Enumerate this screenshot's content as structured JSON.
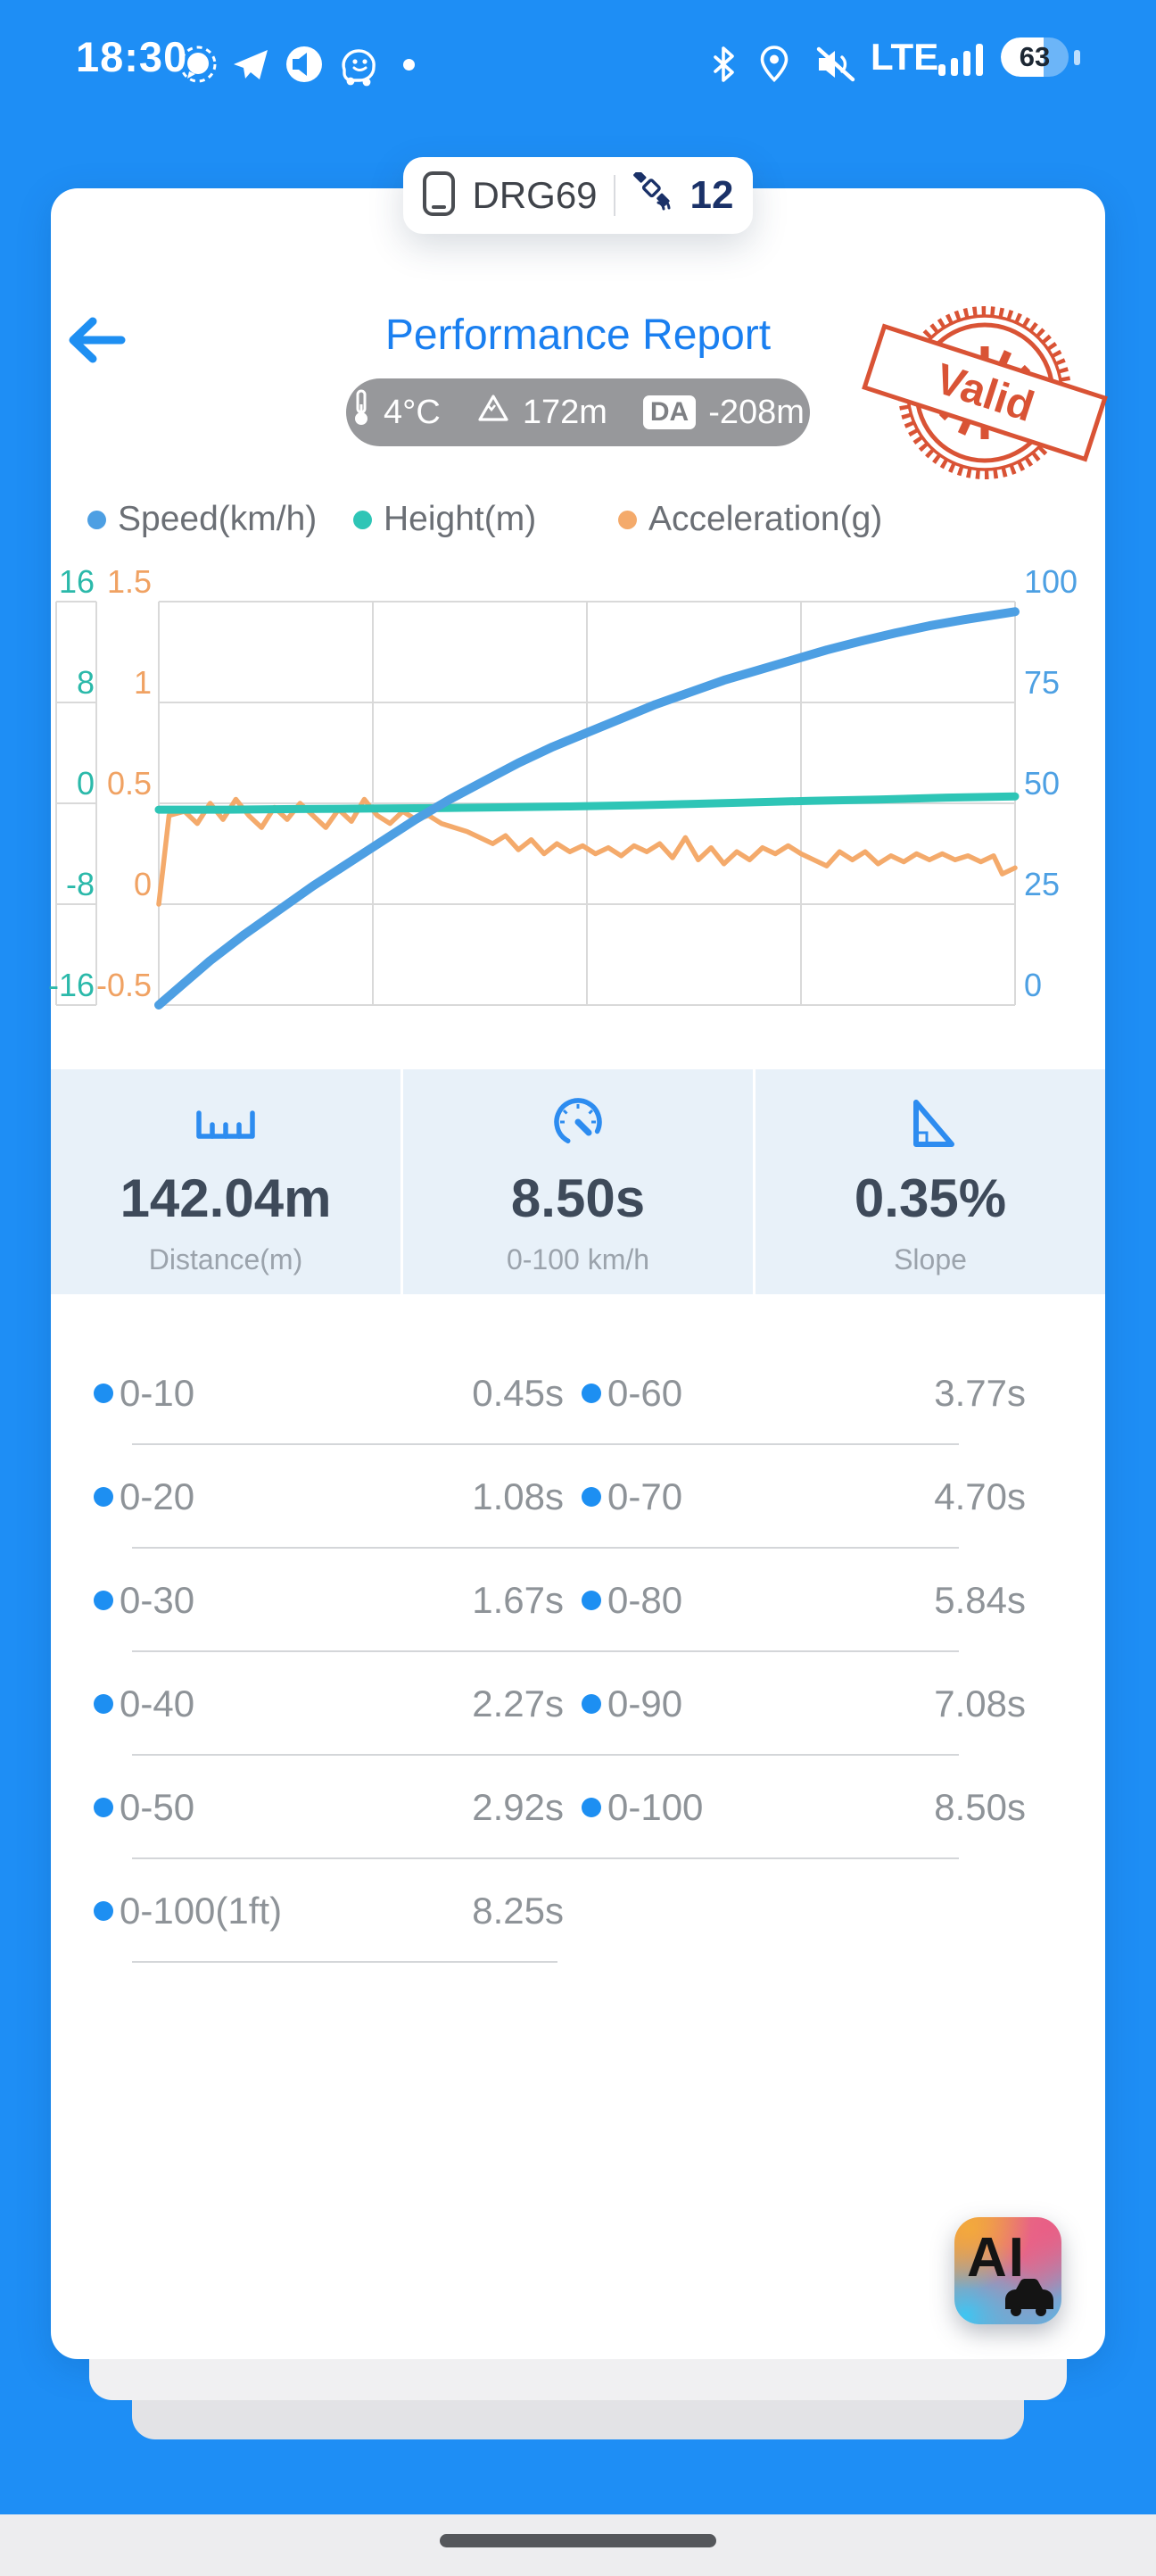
{
  "colors": {
    "accent_blue": "#1d8ff2",
    "page_background": "#1e8ef5",
    "stamp_red": "#d84a2b",
    "speed_blue": "#4d9fe3",
    "height_teal": "#2ec5b6",
    "accel_orange": "#f4aa6b",
    "navy": "#1a3168"
  },
  "status_bar": {
    "time": "18:30",
    "carrier": "LTE",
    "battery_percent": "63"
  },
  "top_pill": {
    "device_name": "DRG69",
    "satellite_count": "12"
  },
  "header": {
    "title": "Performance Report",
    "stamp_text": "Valid",
    "conditions": {
      "temperature": "4°C",
      "elevation": "172m",
      "da_label": "DA",
      "da_value": "-208m"
    }
  },
  "chart_data": {
    "type": "line",
    "title": "",
    "grid": true,
    "legend_position": "top",
    "axes": {
      "height": {
        "label": "Height(m)",
        "ticks": [
          "16",
          "8",
          "0",
          "-8",
          "-16"
        ],
        "range": [
          -16,
          16
        ],
        "color": "#2bb9aa",
        "side": "outer-left"
      },
      "accel": {
        "label": "Acceleration(g)",
        "ticks": [
          "1.5",
          "1",
          "0.5",
          "0",
          "-0.5"
        ],
        "range": [
          -0.5,
          1.5
        ],
        "color": "#f0a263",
        "side": "inner-left"
      },
      "speed": {
        "label": "Speed(km/h)",
        "ticks": [
          "100",
          "75",
          "50",
          "25",
          "0"
        ],
        "range": [
          0,
          100
        ],
        "color": "#4da0e3",
        "side": "right"
      }
    },
    "series": [
      {
        "name": "Speed(km/h)",
        "axis": "speed",
        "color": "#4d9fe3",
        "width": 10,
        "points": [
          [
            0,
            0
          ],
          [
            0.03,
            5.5
          ],
          [
            0.06,
            11
          ],
          [
            0.1,
            17.5
          ],
          [
            0.14,
            23.5
          ],
          [
            0.18,
            29.5
          ],
          [
            0.22,
            35
          ],
          [
            0.26,
            40.5
          ],
          [
            0.3,
            46
          ],
          [
            0.34,
            51
          ],
          [
            0.38,
            55.5
          ],
          [
            0.42,
            60
          ],
          [
            0.46,
            64
          ],
          [
            0.5,
            67.5
          ],
          [
            0.54,
            71
          ],
          [
            0.58,
            74.5
          ],
          [
            0.62,
            77.5
          ],
          [
            0.66,
            80.5
          ],
          [
            0.7,
            83
          ],
          [
            0.74,
            85.5
          ],
          [
            0.78,
            88
          ],
          [
            0.82,
            90.2
          ],
          [
            0.86,
            92.2
          ],
          [
            0.9,
            94
          ],
          [
            0.94,
            95.5
          ],
          [
            0.97,
            96.5
          ],
          [
            1,
            97.5
          ]
        ]
      },
      {
        "name": "Height(m)",
        "axis": "height",
        "color": "#2ec5b6",
        "width": 9,
        "points": [
          [
            0,
            -0.5
          ],
          [
            0.08,
            -0.5
          ],
          [
            0.16,
            -0.45
          ],
          [
            0.24,
            -0.42
          ],
          [
            0.32,
            -0.38
          ],
          [
            0.4,
            -0.32
          ],
          [
            0.48,
            -0.25
          ],
          [
            0.56,
            -0.15
          ],
          [
            0.62,
            -0.05
          ],
          [
            0.68,
            0.05
          ],
          [
            0.76,
            0.2
          ],
          [
            0.84,
            0.3
          ],
          [
            0.92,
            0.45
          ],
          [
            1,
            0.55
          ]
        ]
      },
      {
        "name": "Acceleration(g)",
        "axis": "accel",
        "color": "#f4aa6b",
        "width": 5.5,
        "points": [
          [
            0,
            0
          ],
          [
            0.005,
            0.18
          ],
          [
            0.012,
            0.44
          ],
          [
            0.03,
            0.46
          ],
          [
            0.045,
            0.4
          ],
          [
            0.06,
            0.5
          ],
          [
            0.075,
            0.42
          ],
          [
            0.09,
            0.52
          ],
          [
            0.105,
            0.44
          ],
          [
            0.12,
            0.38
          ],
          [
            0.135,
            0.48
          ],
          [
            0.15,
            0.42
          ],
          [
            0.165,
            0.5
          ],
          [
            0.18,
            0.44
          ],
          [
            0.195,
            0.38
          ],
          [
            0.21,
            0.47
          ],
          [
            0.225,
            0.41
          ],
          [
            0.24,
            0.52
          ],
          [
            0.255,
            0.44
          ],
          [
            0.27,
            0.4
          ],
          [
            0.285,
            0.46
          ],
          [
            0.3,
            0.42
          ],
          [
            0.315,
            0.44
          ],
          [
            0.33,
            0.4
          ],
          [
            0.345,
            0.38
          ],
          [
            0.36,
            0.36
          ],
          [
            0.375,
            0.33
          ],
          [
            0.39,
            0.3
          ],
          [
            0.405,
            0.34
          ],
          [
            0.42,
            0.27
          ],
          [
            0.435,
            0.32
          ],
          [
            0.45,
            0.25
          ],
          [
            0.465,
            0.3
          ],
          [
            0.48,
            0.26
          ],
          [
            0.495,
            0.29
          ],
          [
            0.51,
            0.25
          ],
          [
            0.525,
            0.28
          ],
          [
            0.54,
            0.24
          ],
          [
            0.555,
            0.29
          ],
          [
            0.57,
            0.26
          ],
          [
            0.585,
            0.3
          ],
          [
            0.6,
            0.23
          ],
          [
            0.615,
            0.33
          ],
          [
            0.63,
            0.22
          ],
          [
            0.645,
            0.28
          ],
          [
            0.66,
            0.2
          ],
          [
            0.675,
            0.26
          ],
          [
            0.69,
            0.22
          ],
          [
            0.705,
            0.28
          ],
          [
            0.72,
            0.25
          ],
          [
            0.735,
            0.29
          ],
          [
            0.75,
            0.25
          ],
          [
            0.765,
            0.22
          ],
          [
            0.78,
            0.19
          ],
          [
            0.795,
            0.26
          ],
          [
            0.81,
            0.22
          ],
          [
            0.825,
            0.26
          ],
          [
            0.84,
            0.2
          ],
          [
            0.855,
            0.24
          ],
          [
            0.87,
            0.21
          ],
          [
            0.885,
            0.25
          ],
          [
            0.9,
            0.22
          ],
          [
            0.915,
            0.25
          ],
          [
            0.93,
            0.22
          ],
          [
            0.945,
            0.24
          ],
          [
            0.96,
            0.21
          ],
          [
            0.975,
            0.24
          ],
          [
            0.985,
            0.15
          ],
          [
            1,
            0.18
          ]
        ]
      }
    ]
  },
  "stats": {
    "items": [
      {
        "icon": "ruler-icon",
        "value": "142.04m",
        "label": "Distance(m)"
      },
      {
        "icon": "speedometer-icon",
        "value": "8.50s",
        "label": "0-100 km/h"
      },
      {
        "icon": "slope-icon",
        "value": "0.35%",
        "label": "Slope"
      }
    ]
  },
  "splits": {
    "rows": [
      {
        "left_label": "0-10",
        "left_value": "0.45s",
        "right_label": "0-60",
        "right_value": "3.77s"
      },
      {
        "left_label": "0-20",
        "left_value": "1.08s",
        "right_label": "0-70",
        "right_value": "4.70s"
      },
      {
        "left_label": "0-30",
        "left_value": "1.67s",
        "right_label": "0-80",
        "right_value": "5.84s"
      },
      {
        "left_label": "0-40",
        "left_value": "2.27s",
        "right_label": "0-90",
        "right_value": "7.08s"
      },
      {
        "left_label": "0-50",
        "left_value": "2.92s",
        "right_label": "0-100",
        "right_value": "8.50s"
      },
      {
        "left_label": "0-100(1ft)",
        "left_value": "8.25s"
      }
    ]
  },
  "ai_button": {
    "label": "AI"
  }
}
